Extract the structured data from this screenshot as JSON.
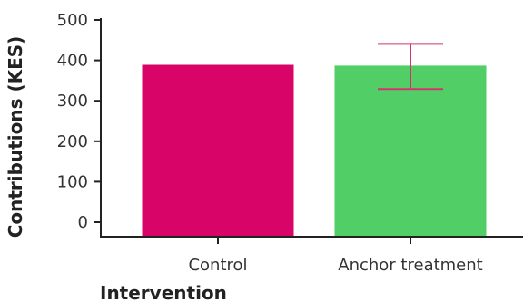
{
  "chart_data": {
    "type": "bar",
    "categories": [
      "Control",
      "Anchor treatment"
    ],
    "values": [
      389,
      387
    ],
    "error_bars": [
      null,
      {
        "lower": 329,
        "upper": 441
      }
    ],
    "title": "",
    "xlabel": "Intervention",
    "ylabel": "Contributions (KES)",
    "ylim": [
      0,
      500
    ],
    "yticks": [
      "0",
      "100",
      "200",
      "300",
      "400",
      "500"
    ],
    "colors": [
      "#d80467",
      "#51cf66"
    ],
    "error_bar_color": "#d4336e",
    "grid": false
  }
}
